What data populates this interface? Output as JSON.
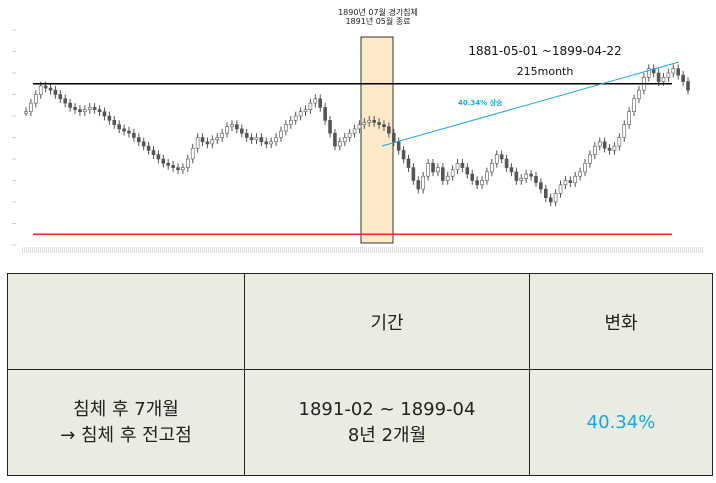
{
  "chart_data": {
    "type": "candlestick",
    "annotations": {
      "recession": [
        "1890년 07월 경기침체",
        "1891년 05월 종료"
      ],
      "period": "1881-05-01 ~1899-04-22",
      "months": "215month",
      "trend": "40.34% 상승"
    },
    "high_line_value": 0.75,
    "low_line_value": 0.05,
    "close_series": [
      0.62,
      0.66,
      0.7,
      0.74,
      0.73,
      0.72,
      0.7,
      0.68,
      0.66,
      0.64,
      0.63,
      0.62,
      0.63,
      0.64,
      0.63,
      0.62,
      0.6,
      0.58,
      0.56,
      0.54,
      0.53,
      0.52,
      0.5,
      0.48,
      0.46,
      0.44,
      0.42,
      0.4,
      0.38,
      0.37,
      0.36,
      0.35,
      0.36,
      0.4,
      0.45,
      0.5,
      0.48,
      0.47,
      0.49,
      0.5,
      0.52,
      0.55,
      0.56,
      0.54,
      0.52,
      0.5,
      0.49,
      0.5,
      0.48,
      0.47,
      0.48,
      0.5,
      0.53,
      0.56,
      0.58,
      0.6,
      0.62,
      0.63,
      0.66,
      0.68,
      0.64,
      0.58,
      0.52,
      0.46,
      0.48,
      0.5,
      0.52,
      0.54,
      0.56,
      0.57,
      0.58,
      0.57,
      0.56,
      0.55,
      0.52,
      0.48,
      0.44,
      0.4,
      0.36,
      0.3,
      0.26,
      0.32,
      0.38,
      0.34,
      0.36,
      0.3,
      0.32,
      0.35,
      0.38,
      0.36,
      0.33,
      0.3,
      0.28,
      0.3,
      0.34,
      0.38,
      0.42,
      0.4,
      0.36,
      0.34,
      0.3,
      0.31,
      0.33,
      0.32,
      0.29,
      0.26,
      0.22,
      0.2,
      0.24,
      0.28,
      0.3,
      0.29,
      0.32,
      0.34,
      0.38,
      0.42,
      0.46,
      0.48,
      0.45,
      0.44,
      0.46,
      0.5,
      0.56,
      0.62,
      0.68,
      0.72,
      0.78,
      0.82,
      0.8,
      0.76,
      0.78,
      0.8,
      0.82,
      0.79,
      0.76,
      0.72
    ]
  },
  "table": {
    "header": {
      "blank": "",
      "period": "기간",
      "change": "변화"
    },
    "row": {
      "label_line1": "침체 후 7개월",
      "label_line2": "→ 침체 후 전고점",
      "period_line1": "1891-02 ~ 1899-04",
      "period_line2": "8년 2개월",
      "change": "40.34%"
    }
  },
  "colors": {
    "high_line": "#000000",
    "low_line": "#e03020",
    "trend": "#1ba7e0",
    "recession_fill": "#fde9c8",
    "candles": "#555555"
  }
}
